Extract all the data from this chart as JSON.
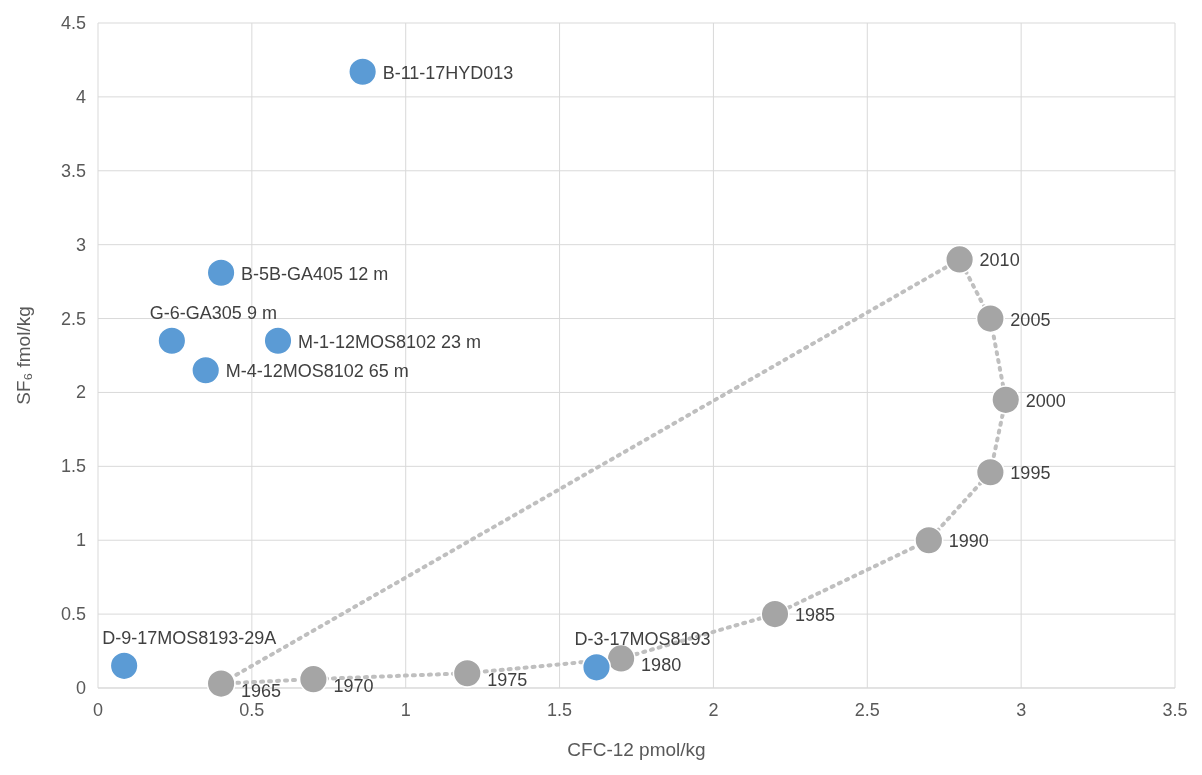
{
  "chart_data": {
    "type": "scatter",
    "xlabel": "CFC-12 pmol/kg",
    "ylabel": "SF₆ fmol/kg",
    "xlim": [
      0,
      3.5
    ],
    "xticks": [
      0,
      0.5,
      1,
      1.5,
      2,
      2.5,
      3,
      3.5
    ],
    "ylim": [
      0,
      4.5
    ],
    "yticks": [
      0,
      0.5,
      1,
      1.5,
      2,
      2.5,
      3,
      3.5,
      4,
      4.5
    ],
    "grid": true,
    "marker": "circle",
    "series": [
      {
        "type": "line",
        "line_style": "dotted",
        "marker": "none",
        "color": "#bfbfbf",
        "x": [
          2.8,
          0.4
        ],
        "values": [
          2.9,
          0.03
        ]
      },
      {
        "type": "line",
        "line_style": "dotted",
        "color": "#a5a5a5",
        "x": [
          0.4,
          0.7,
          1.2,
          1.7,
          2.2,
          2.7,
          2.9,
          2.95,
          2.9,
          2.8
        ],
        "values": [
          0.03,
          0.06,
          0.1,
          0.2,
          0.5,
          1.0,
          1.46,
          1.95,
          2.5,
          2.9
        ]
      },
      {
        "color": "#5b9bd5",
        "x": [
          0.86,
          0.4,
          0.24,
          0.585,
          0.35,
          0.085,
          1.62
        ],
        "values": [
          4.17,
          2.81,
          2.35,
          2.35,
          2.15,
          0.15,
          0.14
        ]
      }
    ],
    "annotations": [
      {
        "text": "1965",
        "x": 0.4,
        "y": 0.03
      },
      {
        "text": "1970",
        "x": 0.7,
        "y": 0.06
      },
      {
        "text": "1975",
        "x": 1.2,
        "y": 0.1
      },
      {
        "text": "1980",
        "x": 1.7,
        "y": 0.2
      },
      {
        "text": "1985",
        "x": 2.2,
        "y": 0.5
      },
      {
        "text": "1990",
        "x": 2.7,
        "y": 1.0
      },
      {
        "text": "1995",
        "x": 2.9,
        "y": 1.46
      },
      {
        "text": "2000",
        "x": 2.95,
        "y": 1.95
      },
      {
        "text": "2005",
        "x": 2.9,
        "y": 2.5
      },
      {
        "text": "2010",
        "x": 2.8,
        "y": 2.9
      },
      {
        "text": "B-11-17HYD013",
        "x": 0.86,
        "y": 4.17
      },
      {
        "text": "B-5B-GA405 12 m",
        "x": 0.4,
        "y": 2.81
      },
      {
        "text": "G-6-GA305 9 m",
        "x": 0.24,
        "y": 2.35
      },
      {
        "text": "M-1-12MOS8102 23 m",
        "x": 0.585,
        "y": 2.35
      },
      {
        "text": "M-4-12MOS8102 65 m",
        "x": 0.35,
        "y": 2.15
      },
      {
        "text": "D-9-17MOS8193-29A",
        "x": 0.085,
        "y": 0.15
      },
      {
        "text": "D-3-17MOS8193",
        "x": 1.62,
        "y": 0.14
      }
    ]
  }
}
